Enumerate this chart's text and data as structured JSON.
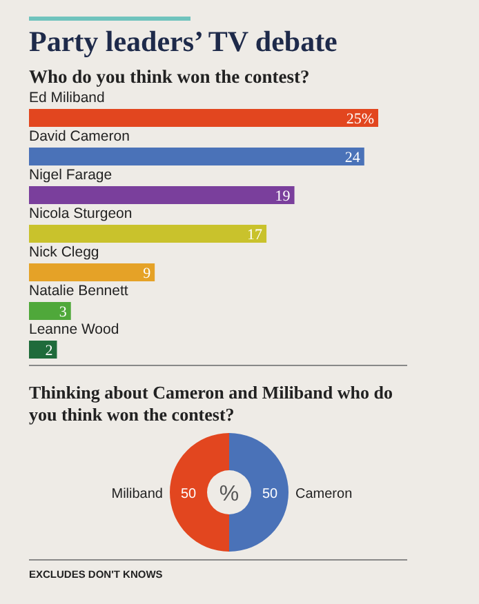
{
  "chart_data": [
    {
      "type": "bar",
      "orientation": "horizontal",
      "title": "Party leaders’ TV debate",
      "subtitle": "Who do you think won the contest?",
      "categories": [
        "Ed Miliband",
        "David Cameron",
        "Nigel Farage",
        "Nicola Sturgeon",
        "Nick Clegg",
        "Natalie Bennett",
        "Leanne Wood"
      ],
      "values": [
        25,
        24,
        19,
        17,
        9,
        3,
        2
      ],
      "colors": [
        "#e2461f",
        "#4a72b8",
        "#7a3f9c",
        "#c9c22c",
        "#e5a227",
        "#4fa83a",
        "#1f6b3b"
      ],
      "value_labels": [
        "25%",
        "24",
        "19",
        "17",
        "9",
        "3",
        "2"
      ]
    },
    {
      "type": "donut",
      "title": "Thinking about Cameron and Miliband who do you think won the contest?",
      "categories": [
        "Miliband",
        "Cameron"
      ],
      "values": [
        50,
        50
      ],
      "colors": [
        "#e2461f",
        "#4a72b8"
      ],
      "data_labels": true,
      "annotations": [
        "%",
        "EXCLUDES DON'T KNOWS"
      ]
    }
  ]
}
